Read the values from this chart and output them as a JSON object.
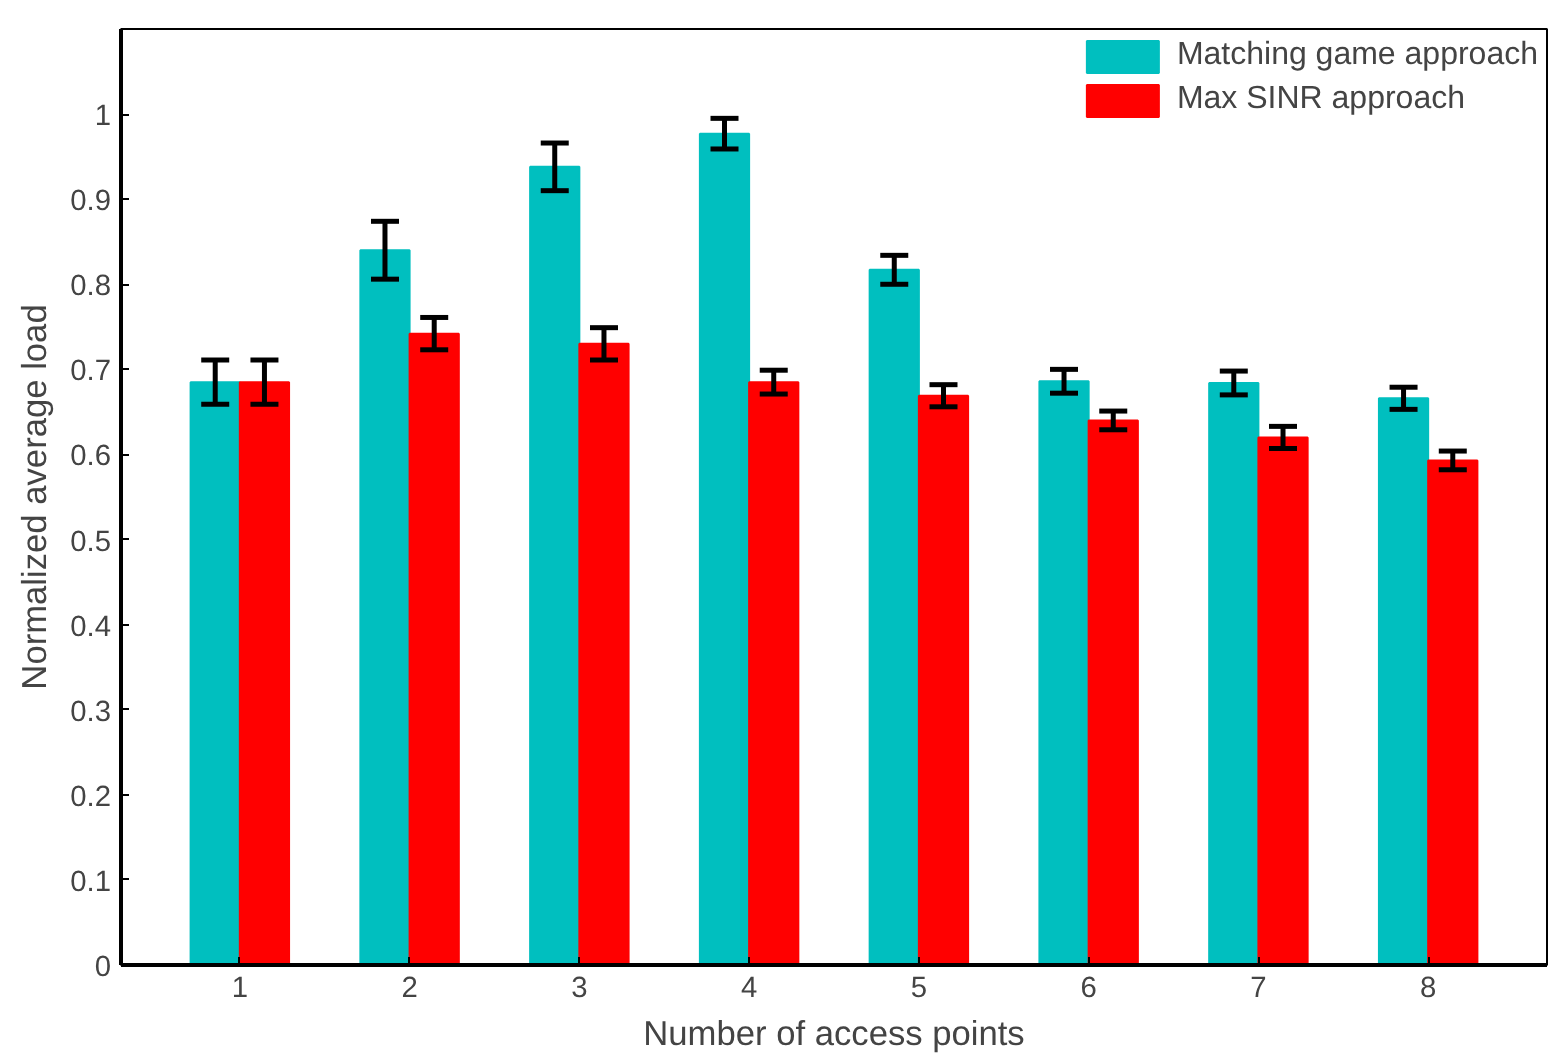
{
  "chart_data": {
    "type": "bar",
    "xlabel": "Number of access points",
    "ylabel": "Normalized average load",
    "categories": [
      "1",
      "2",
      "3",
      "4",
      "5",
      "6",
      "7",
      "8"
    ],
    "series": [
      {
        "name": "Matching game approach",
        "color": "#00bfbf",
        "values": [
          0.685,
          0.84,
          0.938,
          0.977,
          0.817,
          0.686,
          0.684,
          0.666
        ],
        "errors": [
          0.026,
          0.034,
          0.028,
          0.018,
          0.017,
          0.014,
          0.014,
          0.013
        ]
      },
      {
        "name": "Max SINR approach",
        "color": "#ff0000",
        "values": [
          0.685,
          0.742,
          0.73,
          0.685,
          0.669,
          0.64,
          0.62,
          0.593
        ],
        "errors": [
          0.026,
          0.019,
          0.019,
          0.014,
          0.013,
          0.011,
          0.013,
          0.011
        ]
      }
    ],
    "ylim": [
      0,
      1.1
    ],
    "yticks": [
      {
        "value": 0,
        "label": "0"
      },
      {
        "value": 0.1,
        "label": "0.1"
      },
      {
        "value": 0.2,
        "label": "0.2"
      },
      {
        "value": 0.3,
        "label": "0.3"
      },
      {
        "value": 0.4,
        "label": "0.4"
      },
      {
        "value": 0.5,
        "label": "0.5"
      },
      {
        "value": 0.6,
        "label": "0.6"
      },
      {
        "value": 0.7,
        "label": "0.7"
      },
      {
        "value": 0.8,
        "label": "0.8"
      },
      {
        "value": 0.9,
        "label": "0.9"
      },
      {
        "value": 1,
        "label": "1"
      }
    ],
    "grid": false,
    "legend": "top right"
  }
}
